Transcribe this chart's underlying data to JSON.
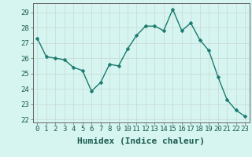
{
  "x": [
    0,
    1,
    2,
    3,
    4,
    5,
    6,
    7,
    8,
    9,
    10,
    11,
    12,
    13,
    14,
    15,
    16,
    17,
    18,
    19,
    20,
    21,
    22,
    23
  ],
  "y": [
    27.3,
    26.1,
    26.0,
    25.9,
    25.4,
    25.2,
    23.85,
    24.4,
    25.6,
    25.5,
    26.6,
    27.5,
    28.1,
    28.1,
    27.8,
    29.2,
    27.8,
    28.3,
    27.2,
    26.5,
    24.8,
    23.3,
    22.6,
    22.2
  ],
  "line_color": "#1a7a6e",
  "marker": "D",
  "marker_size": 2.5,
  "bg_color": "#d6f5f0",
  "grid_color": "#c8d8d4",
  "xlabel": "Humidex (Indice chaleur)",
  "ylim": [
    21.8,
    29.6
  ],
  "xlim": [
    -0.5,
    23.5
  ],
  "yticks": [
    22,
    23,
    24,
    25,
    26,
    27,
    28,
    29
  ],
  "xticks": [
    0,
    1,
    2,
    3,
    4,
    5,
    6,
    7,
    8,
    9,
    10,
    11,
    12,
    13,
    14,
    15,
    16,
    17,
    18,
    19,
    20,
    21,
    22,
    23
  ],
  "tick_fontsize": 6.5,
  "xlabel_fontsize": 8,
  "line_width": 1.0,
  "spine_color": "#666666"
}
